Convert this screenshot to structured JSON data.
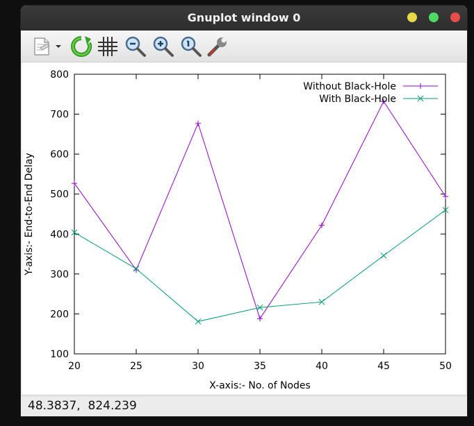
{
  "window": {
    "title": "Gnuplot window 0",
    "buttons": {
      "minimize_color": "#e7d94a",
      "maximize_color": "#4cd964",
      "close_color": "#e94b4b"
    }
  },
  "toolbar": {
    "items": [
      {
        "name": "export",
        "icon": "copy-to-clipboard-icon"
      },
      {
        "name": "export-menu",
        "icon": "chevron-down-icon"
      },
      {
        "name": "replot",
        "icon": "refresh-icon"
      },
      {
        "name": "grid",
        "icon": "grid-icon"
      },
      {
        "name": "zoom-prev",
        "icon": "zoom-out-icon"
      },
      {
        "name": "zoom-next",
        "icon": "zoom-in-icon"
      },
      {
        "name": "autoscale",
        "icon": "zoom-fit-icon"
      },
      {
        "name": "settings",
        "icon": "wrench-icon"
      }
    ]
  },
  "statusbar": {
    "coordinates": "48.3837,  824.239"
  },
  "chart_data": {
    "type": "line",
    "title": "",
    "xlabel": "X-axis:- No. of Nodes",
    "ylabel": "Y-axis:- End-to-End Delay",
    "xlim": [
      20,
      50
    ],
    "ylim": [
      100,
      800
    ],
    "x_ticks": [
      20,
      25,
      30,
      35,
      40,
      45,
      50
    ],
    "y_ticks": [
      100,
      200,
      300,
      400,
      500,
      600,
      700,
      800
    ],
    "grid": false,
    "legend_position": "top-right",
    "x": [
      20,
      25,
      30,
      35,
      40,
      45,
      50
    ],
    "series": [
      {
        "name": "Without Black-Hole",
        "color": "#9400d3",
        "marker": "+",
        "values": [
          527,
          310,
          677,
          188,
          422,
          732,
          494
        ]
      },
      {
        "name": "With Black-Hole",
        "color": "#009e73",
        "marker": "x",
        "values": [
          404,
          313,
          181,
          216,
          230,
          346,
          460
        ]
      }
    ]
  }
}
